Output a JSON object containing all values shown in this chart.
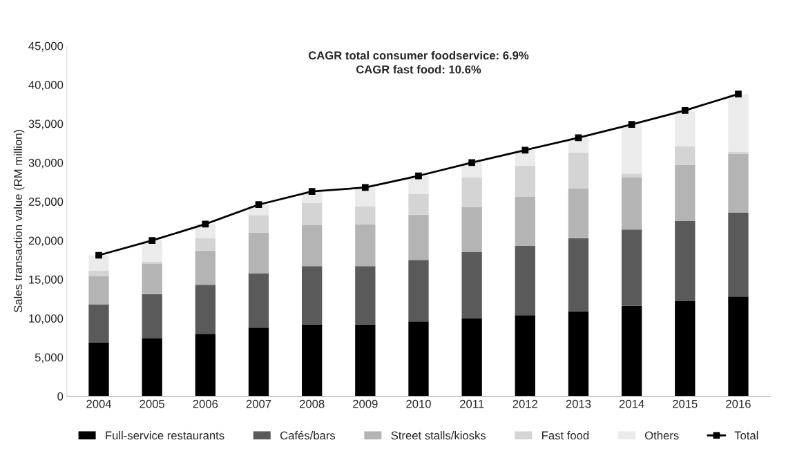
{
  "chart_data": {
    "type": "bar",
    "stacked": true,
    "title": "CAGR total consumer foodservice: 6.9%",
    "subtitle": "CAGR fast food: 10.6%",
    "ylabel": "Sales transaction value (RM million)",
    "categories": [
      "2004",
      "2005",
      "2006",
      "2007",
      "2008",
      "2009",
      "2010",
      "2011",
      "2012",
      "2013",
      "2014",
      "2015",
      "2016"
    ],
    "series": [
      {
        "name": "Full-service restaurants",
        "color": "#000000",
        "values": [
          6900,
          7400,
          8000,
          8800,
          9200,
          9200,
          9600,
          10000,
          10400,
          10900,
          11600,
          12200,
          12800
        ]
      },
      {
        "name": "Cafés/bars",
        "color": "#5a5a5a",
        "values": [
          4900,
          5700,
          6300,
          7000,
          7500,
          7500,
          7900,
          8500,
          8900,
          9400,
          9800,
          10300,
          10800
        ]
      },
      {
        "name": "Street stalls/kiosks",
        "color": "#b4b4b4",
        "values": [
          3600,
          3900,
          4400,
          5200,
          5300,
          5400,
          5800,
          5800,
          6300,
          6400,
          6700,
          7200,
          7500
        ]
      },
      {
        "name": "Fast food",
        "color": "#d4d4d4",
        "values": [
          700,
          300,
          1600,
          2200,
          2800,
          2300,
          2700,
          3800,
          4000,
          4600,
          500,
          2400,
          300
        ]
      },
      {
        "name": "Others",
        "color": "#ebebeb",
        "values": [
          2000,
          2700,
          1800,
          1400,
          1500,
          2400,
          2300,
          1900,
          2000,
          1900,
          6300,
          4600,
          7400
        ]
      },
      {
        "name": "Total",
        "type": "line",
        "color": "#000000",
        "marker": "square",
        "values": [
          18100,
          20000,
          22100,
          24600,
          26300,
          26800,
          28300,
          30000,
          31600,
          33200,
          34900,
          36700,
          38800
        ]
      }
    ],
    "ylim": [
      0,
      45000
    ],
    "yticks": [
      {
        "value": 0,
        "label": "0"
      },
      {
        "value": 5000,
        "label": "5,000"
      },
      {
        "value": 10000,
        "label": "10,000"
      },
      {
        "value": 15000,
        "label": "15,000"
      },
      {
        "value": 20000,
        "label": "20,000"
      },
      {
        "value": 25000,
        "label": "25,000"
      },
      {
        "value": 30000,
        "label": "30,000"
      },
      {
        "value": 35000,
        "label": "35,000"
      },
      {
        "value": 40000,
        "label": "40,000"
      },
      {
        "value": 45000,
        "label": "45,000"
      }
    ],
    "grid": false,
    "legend": "bottom"
  }
}
